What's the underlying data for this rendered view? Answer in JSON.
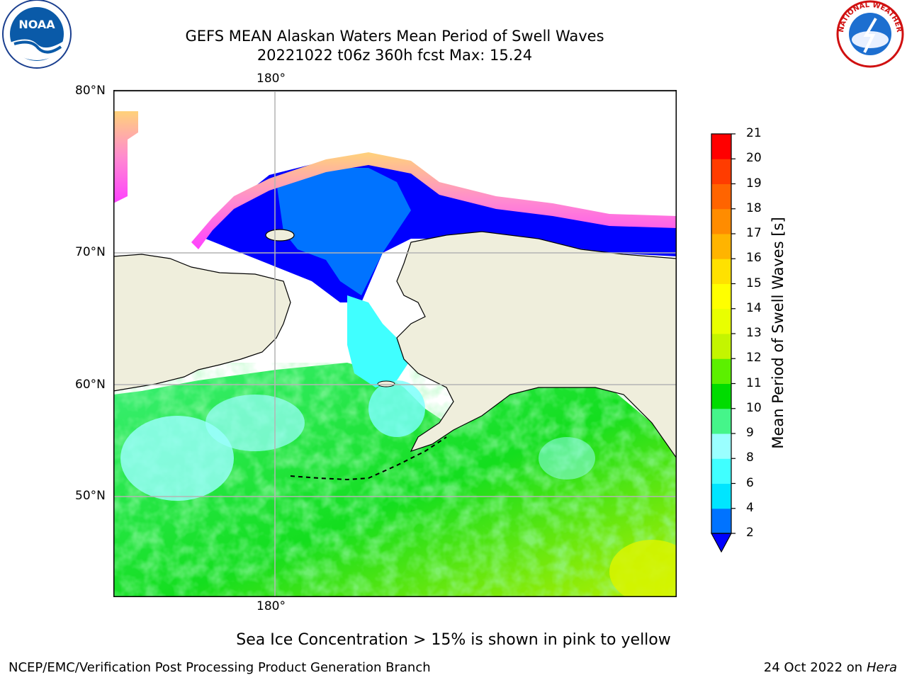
{
  "title": {
    "line1": "GEFS MEAN Alaskan Waters Mean Period of Swell Waves",
    "line2": "20221022 t06z 360h fcst   Max: 15.24"
  },
  "axes": {
    "top_lon": "180°",
    "bottom_lon": "180°",
    "lat_labels": [
      "80°N",
      "70°N",
      "60°N",
      "50°N"
    ]
  },
  "colorbar": {
    "label": "Mean Period of Swell Waves [s]",
    "ticks": [
      "2",
      "4",
      "6",
      "8",
      "9",
      "10",
      "11",
      "12",
      "13",
      "14",
      "15",
      "16",
      "17",
      "18",
      "19",
      "20",
      "21"
    ],
    "colors": [
      "#0073ff",
      "#00e5ff",
      "#40ffff",
      "#9affff",
      "#45f58a",
      "#00dc00",
      "#5cf000",
      "#c4f500",
      "#e9ff00",
      "#ffff00",
      "#ffe100",
      "#ffb400",
      "#ff8c00",
      "#ff6400",
      "#ff3c00",
      "#ff0000"
    ],
    "under_color": "#0000ff"
  },
  "note": "Sea Ice Concentration > 15% is shown in pink to yellow",
  "footer": {
    "left": "NCEP/EMC/Verification Post Processing Product Generation Branch",
    "right_prefix": "24 Oct 2022 on ",
    "right_machine": "Hera"
  },
  "logos": {
    "left_text": "NOAA",
    "right_ring_text": "NATIONAL WEATHER SERVICE"
  }
}
